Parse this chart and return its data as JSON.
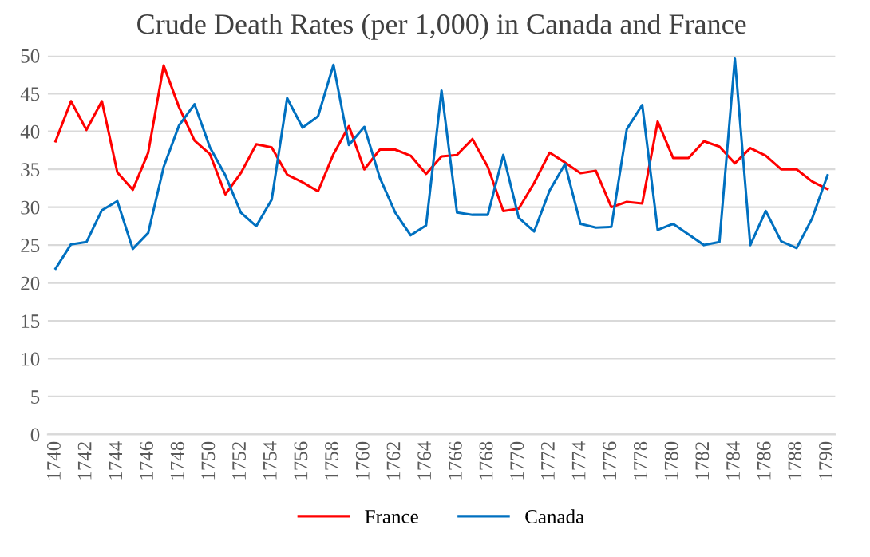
{
  "chart_data": {
    "type": "line",
    "title": "Crude Death Rates (per 1,000) in Canada and France",
    "categories": [
      "1740",
      null,
      "1742",
      null,
      "1744",
      null,
      "1746",
      null,
      "1748",
      null,
      "1750",
      null,
      "1752",
      null,
      "1754",
      null,
      "1756",
      null,
      "1758",
      null,
      "1760",
      null,
      "1762",
      null,
      "1764",
      null,
      "1766",
      null,
      "1768",
      null,
      "1770",
      null,
      "1772",
      null,
      "1774",
      null,
      "1776",
      null,
      "1778",
      null,
      "1780",
      null,
      "1782",
      null,
      "1784",
      null,
      "1786",
      null,
      "1788",
      null,
      "1790"
    ],
    "series": [
      {
        "name": "France",
        "color": "#ff0000",
        "values": [
          38.7,
          44,
          40.2,
          44,
          34.6,
          32.3,
          37.2,
          48.7,
          43.2,
          38.8,
          37,
          31.7,
          34.5,
          38.3,
          37.9,
          34.3,
          33.3,
          32.1,
          37,
          40.7,
          35,
          37.6,
          37.6,
          36.8,
          34.4,
          36.7,
          36.9,
          39,
          35.3,
          29.5,
          29.8,
          33.2,
          37.2,
          35.9,
          34.5,
          34.8,
          30,
          30.7,
          30.5,
          41.3,
          36.5,
          36.5,
          38.7,
          38,
          35.8,
          37.8,
          36.8,
          35,
          35,
          33.4,
          32.4
        ]
      },
      {
        "name": "Canada",
        "color": "#0070c0",
        "values": [
          21.9,
          25.1,
          25.4,
          29.6,
          30.8,
          24.5,
          26.6,
          35.3,
          40.8,
          43.6,
          37.9,
          34.2,
          29.3,
          27.5,
          31,
          44.4,
          40.5,
          42,
          48.8,
          38.2,
          40.6,
          33.9,
          29.3,
          26.3,
          27.6,
          45.4,
          29.3,
          29,
          29,
          36.9,
          28.6,
          26.8,
          32.2,
          35.7,
          27.8,
          27.3,
          27.4,
          40.3,
          43.5,
          27,
          27.8,
          26.4,
          25,
          25.4,
          49.6,
          25,
          29.5,
          25.5,
          24.6,
          28.5,
          34.2
        ]
      }
    ],
    "ylim": [
      0,
      50
    ],
    "yticks": [
      0,
      5,
      10,
      15,
      20,
      25,
      30,
      35,
      40,
      45,
      50
    ],
    "grid": "y",
    "legend": "bottom",
    "marker": "none",
    "line_style": "solid"
  }
}
